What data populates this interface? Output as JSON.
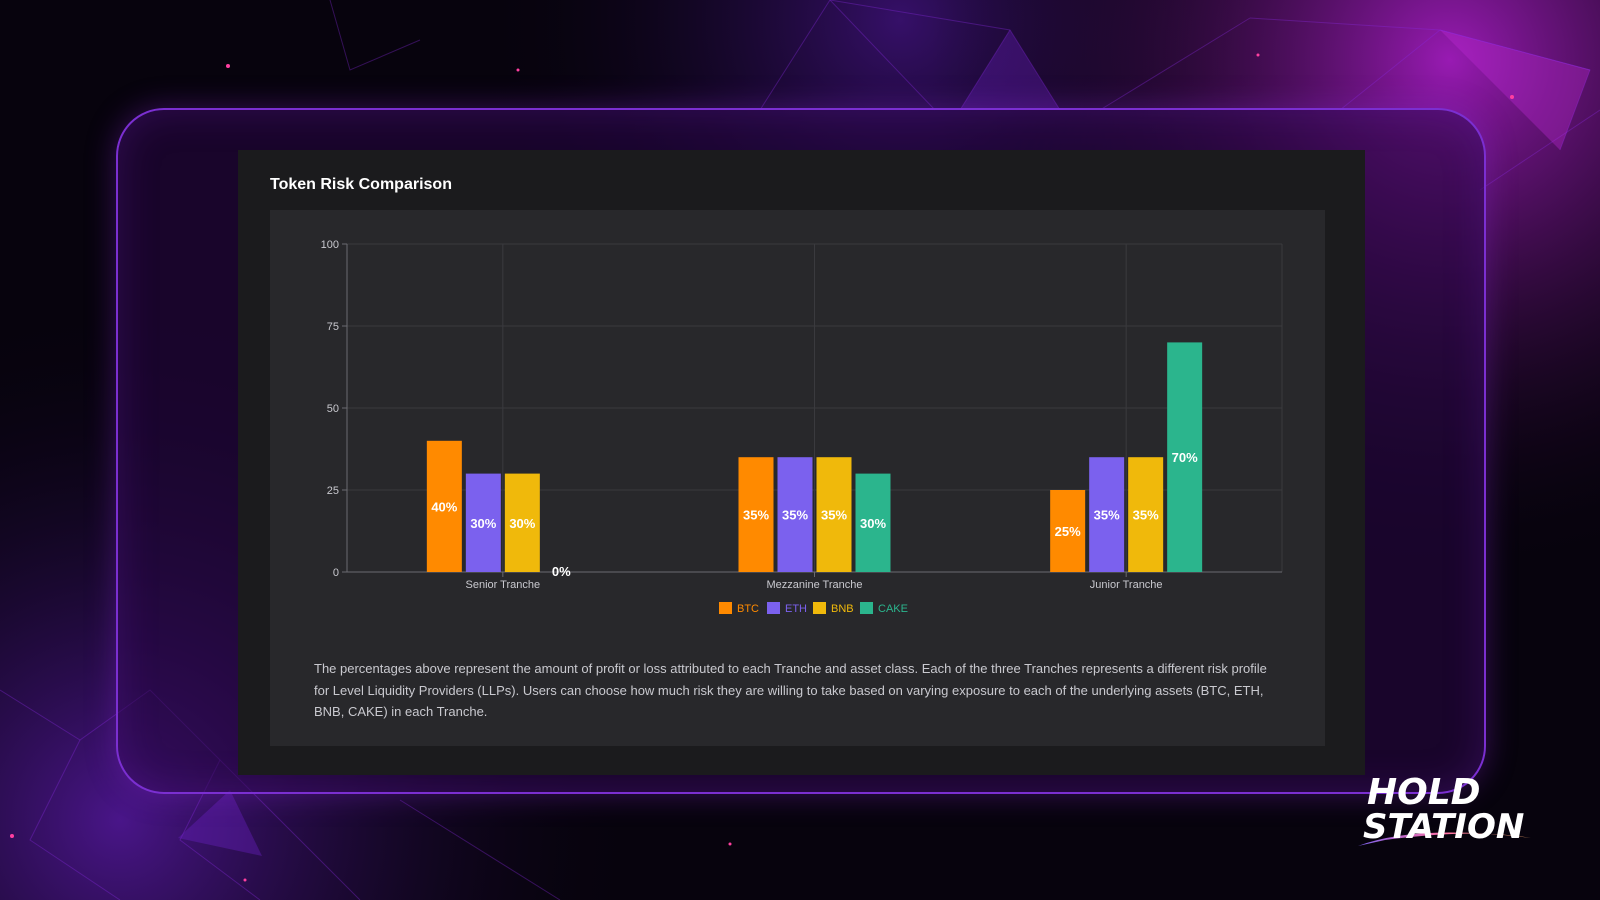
{
  "card": {
    "title": "Token Risk Comparison",
    "description": "The percentages above represent the amount of profit or loss attributed to each Tranche and asset class. Each of the three Tranches represents a different risk profile for Level Liquidity Providers (LLPs). Users can choose how much risk they are willing to take based on varying exposure to each of the underlying assets (BTC, ETH, BNB, CAKE) in each Tranche."
  },
  "logo": {
    "line1": "HOLD",
    "line2": "STATION"
  },
  "colors": {
    "BTC": "#ff8a00",
    "ETH": "#7b61ee",
    "BNB": "#f0b90b",
    "CAKE": "#2bb58d"
  },
  "chart_data": {
    "type": "bar",
    "title": "Token Risk Comparison",
    "xlabel": "",
    "ylabel": "",
    "ylim": [
      0,
      100
    ],
    "yticks": [
      0,
      25,
      50,
      75,
      100
    ],
    "grid": true,
    "legend_position": "bottom-center",
    "categories": [
      "Senior Tranche",
      "Mezzanine Tranche",
      "Junior Tranche"
    ],
    "series": [
      {
        "name": "BTC",
        "values": [
          40,
          35,
          25
        ],
        "labels": [
          "40%",
          "35%",
          "25%"
        ]
      },
      {
        "name": "ETH",
        "values": [
          30,
          35,
          35
        ],
        "labels": [
          "30%",
          "35%",
          "35%"
        ]
      },
      {
        "name": "BNB",
        "values": [
          30,
          35,
          35
        ],
        "labels": [
          "30%",
          "35%",
          "35%"
        ]
      },
      {
        "name": "CAKE",
        "values": [
          0,
          30,
          70
        ],
        "labels": [
          "0%",
          "30%",
          "70%"
        ]
      }
    ]
  }
}
